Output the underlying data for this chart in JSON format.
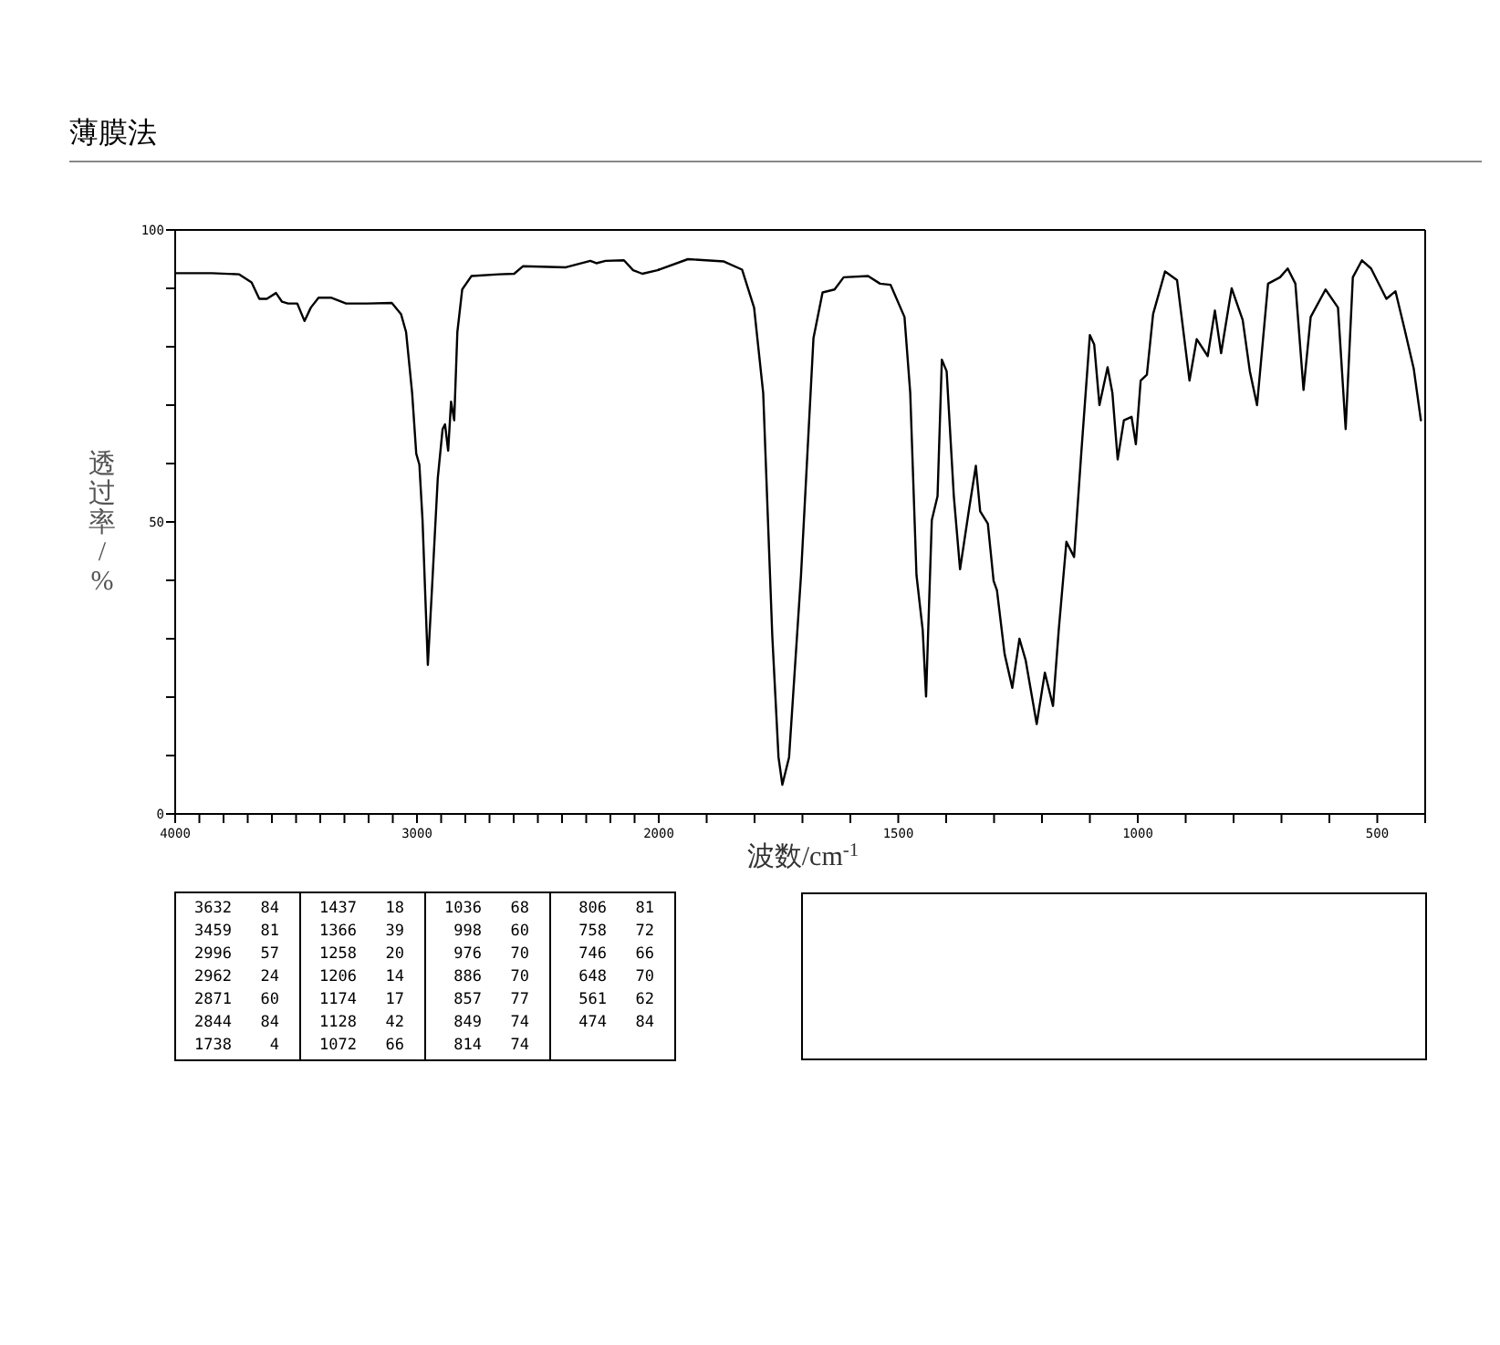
{
  "chart_data": [
    {
      "type": "line",
      "title": "薄膜法",
      "ylabel": "透过率/%",
      "xlim": [
        4000,
        2000
      ],
      "ylim": [
        0,
        100
      ],
      "xticks": [
        4000,
        {
          "value": 3900,
          "label": null
        },
        {
          "value": 3800,
          "label": null
        },
        {
          "value": 3700,
          "label": null
        },
        {
          "value": 3600,
          "label": null
        },
        {
          "value": 3500,
          "label": null
        },
        {
          "value": 3400,
          "label": null
        },
        {
          "value": 3300,
          "label": null
        },
        {
          "value": 3200,
          "label": null
        },
        {
          "value": 3100,
          "label": null
        },
        3000,
        {
          "value": 2900,
          "label": null
        },
        {
          "value": 2800,
          "label": null
        },
        {
          "value": 2700,
          "label": null
        },
        {
          "value": 2600,
          "label": null
        },
        {
          "value": 2500,
          "label": null
        },
        {
          "value": 2400,
          "label": null
        },
        {
          "value": 2300,
          "label": null
        },
        {
          "value": 2200,
          "label": null
        },
        {
          "value": 2100,
          "label": null
        },
        2000
      ],
      "yticks": [
        0,
        {
          "value": 10,
          "label": null
        },
        {
          "value": 20,
          "label": null
        },
        {
          "value": 30,
          "label": null
        },
        {
          "value": 40,
          "label": null
        },
        50,
        {
          "value": 60,
          "label": null
        },
        {
          "value": 70,
          "label": null
        },
        {
          "value": 80,
          "label": null
        },
        {
          "value": 90,
          "label": null
        },
        100
      ],
      "marker": "none",
      "line_style": "solid",
      "series": [
        {
          "color": "#000000",
          "x": [
            4000,
            3848,
            3735,
            3684,
            3652,
            3621,
            3583,
            3558,
            3533,
            3495,
            3465,
            3439,
            3407,
            3356,
            3293,
            3205,
            3104,
            3066,
            3045,
            3020,
            3003,
            2990,
            2977,
            2965,
            2955,
            2939,
            2914,
            2894,
            2884,
            2871,
            2859,
            2846,
            2833,
            2813,
            2775,
            2662,
            2598,
            2561,
            2384,
            2283,
            2258,
            2220,
            2144,
            2106,
            2068,
            2005,
            2000
          ],
          "values": [
            92.6,
            92.6,
            92.4,
            91.0,
            88.2,
            88.2,
            89.2,
            87.7,
            87.4,
            87.4,
            84.4,
            86.7,
            88.4,
            88.4,
            87.4,
            87.4,
            87.5,
            85.6,
            82.5,
            72.1,
            61.7,
            59.8,
            50.3,
            36.7,
            25.5,
            37.7,
            57.5,
            65.9,
            66.7,
            62.2,
            70.6,
            67.4,
            82.5,
            89.8,
            92.1,
            92.4,
            92.5,
            93.8,
            93.6,
            94.7,
            94.3,
            94.7,
            94.8,
            93.1,
            92.5,
            93.1,
            93.2
          ]
        }
      ],
      "annotations": [
        "3632 84",
        "3459 81",
        "2996 57",
        "2962 24",
        "2871 60",
        "2844 84",
        "1738 4",
        "1437 18",
        "1366 39",
        "1258 20",
        "1206 14",
        "1174 17",
        "1128 42",
        "1072 66",
        "1036 68",
        "998 60",
        "976 70",
        "886 70",
        "857 77",
        "849 74",
        "814 74",
        "806 81",
        "758 72",
        "746 66",
        "648 70",
        "561 62",
        "474 84"
      ]
    },
    {
      "type": "line",
      "xlabel": "波数/cm$^{-1}$",
      "xlim": [
        2000,
        400
      ],
      "ylim": [
        0,
        100
      ],
      "tick_labels": "x",
      "xticks": [
        {
          "value": 1900,
          "label": null
        },
        {
          "value": 1800,
          "label": null
        },
        {
          "value": 1700,
          "label": null
        },
        {
          "value": 1600,
          "label": null
        },
        1500,
        {
          "value": 1400,
          "label": null
        },
        {
          "value": 1300,
          "label": null
        },
        {
          "value": 1200,
          "label": null
        },
        {
          "value": 1100,
          "label": null
        },
        1000,
        {
          "value": 900,
          "label": null
        },
        {
          "value": 800,
          "label": null
        },
        {
          "value": 700,
          "label": null
        },
        {
          "value": 600,
          "label": null
        },
        500,
        {
          "value": 400,
          "label": null
        }
      ],
      "marker": "none",
      "line_style": "solid",
      "series": [
        {
          "color": "#000000",
          "x": [
            2000,
            1939,
            1864,
            1826,
            1801,
            1782,
            1763,
            1750,
            1742,
            1728,
            1703,
            1677,
            1658,
            1633,
            1614,
            1563,
            1538,
            1516,
            1487,
            1475,
            1462,
            1449,
            1442,
            1430,
            1418,
            1409,
            1399,
            1384,
            1371,
            1352,
            1338,
            1329,
            1313,
            1301,
            1294,
            1278,
            1262,
            1247,
            1234,
            1211,
            1194,
            1177,
            1165,
            1149,
            1133,
            1118,
            1100,
            1091,
            1080,
            1063,
            1053,
            1042,
            1029,
            1013,
            1004,
            994,
            981,
            968,
            943,
            918,
            892,
            877,
            854,
            839,
            826,
            804,
            781,
            766,
            751,
            728,
            703,
            687,
            671,
            654,
            639,
            608,
            582,
            566,
            551,
            532,
            513,
            481,
            462,
            443,
            424,
            409
          ],
          "values": [
            93.2,
            95.0,
            94.6,
            93.2,
            86.7,
            72.1,
            30.5,
            9.7,
            5.0,
            9.7,
            40.9,
            81.5,
            89.3,
            89.8,
            91.9,
            92.1,
            90.8,
            90.6,
            85.1,
            72.1,
            40.9,
            31.5,
            20.1,
            50.3,
            54.4,
            77.8,
            75.8,
            54.4,
            41.9,
            52.3,
            59.6,
            51.8,
            49.7,
            39.9,
            38.3,
            27.4,
            21.6,
            30.0,
            26.3,
            15.4,
            24.2,
            18.5,
            31.5,
            46.6,
            44.0,
            61.7,
            82.0,
            80.4,
            70.0,
            76.5,
            72.1,
            60.7,
            67.4,
            68.0,
            63.3,
            74.2,
            75.2,
            85.6,
            92.9,
            91.4,
            74.2,
            81.3,
            78.4,
            86.2,
            78.9,
            90.0,
            84.6,
            75.8,
            70.0,
            90.8,
            91.9,
            93.4,
            90.8,
            72.6,
            85.1,
            89.8,
            86.7,
            65.9,
            91.9,
            94.8,
            93.4,
            88.2,
            89.5,
            83.0,
            76.3,
            67.4
          ]
        }
      ]
    }
  ]
}
